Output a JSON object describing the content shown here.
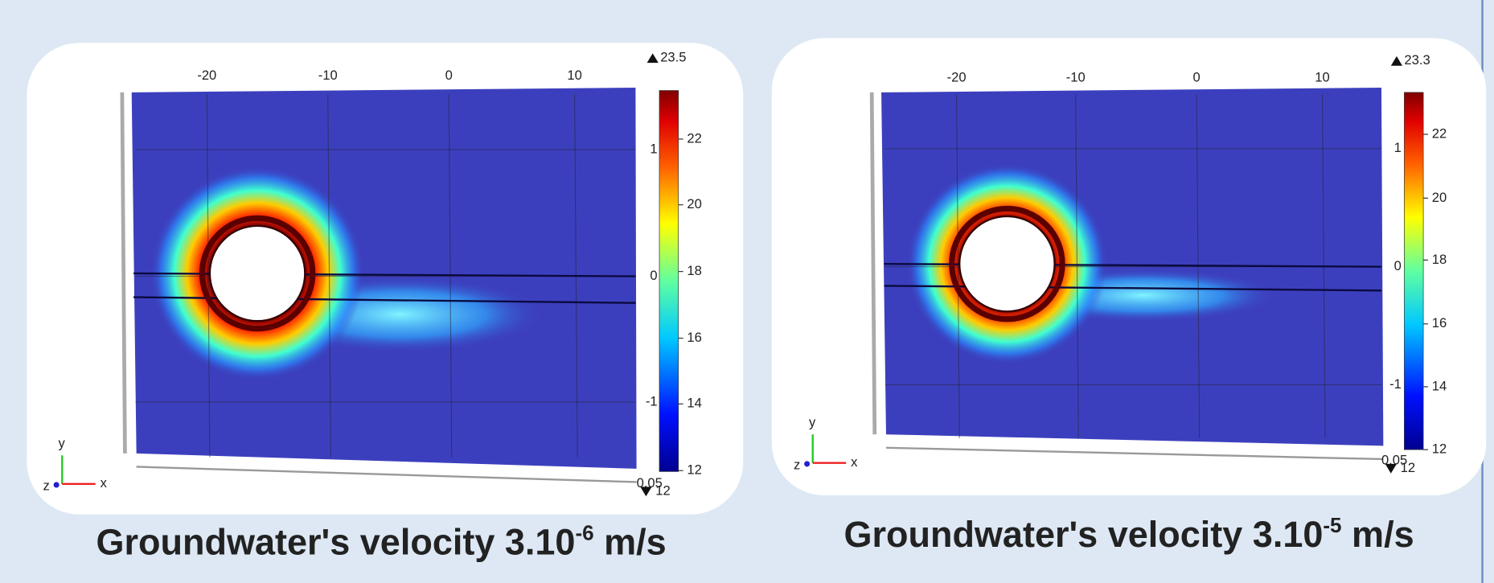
{
  "panels": [
    {
      "x_ticks": [
        "-20",
        "-10",
        "0",
        "10"
      ],
      "y_ticks": [
        "1",
        "0",
        "-1"
      ],
      "colorbar": {
        "max": "23.5",
        "min": "12",
        "ticks": [
          "22",
          "20",
          "18",
          "16",
          "14",
          "12"
        ]
      },
      "corner_label": "0.05",
      "axes": {
        "y": "y",
        "x": "x",
        "z": "z"
      },
      "caption": {
        "main": "Groundwater's velocity 3.10",
        "exponent": "-6",
        "unit": " m/s"
      }
    },
    {
      "x_ticks": [
        "-20",
        "-10",
        "0",
        "10"
      ],
      "y_ticks": [
        "1",
        "0",
        "-1"
      ],
      "colorbar": {
        "max": "23.3",
        "min": "12",
        "ticks": [
          "22",
          "20",
          "18",
          "16",
          "14",
          "12"
        ]
      },
      "corner_label": "0.05",
      "axes": {
        "y": "y",
        "x": "x",
        "z": "z"
      },
      "caption": {
        "main": "Groundwater's velocity 3.10",
        "exponent": "-5",
        "unit": " m/s"
      }
    }
  ]
}
